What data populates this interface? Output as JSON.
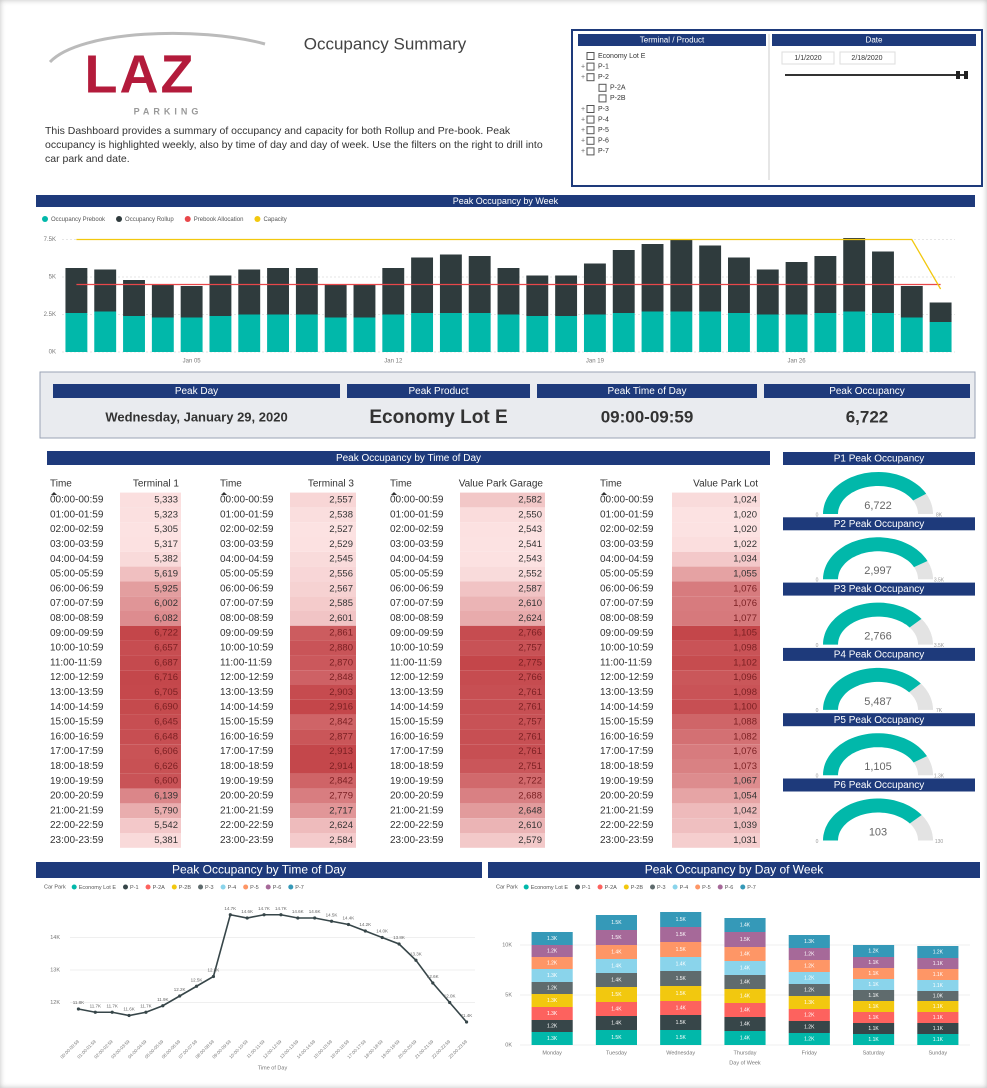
{
  "header": {
    "logo": "LAZ",
    "logo_sub": "PARKING",
    "title": "Occupancy Summary",
    "description": "This Dashboard provides a summary of occupancy and capacity for both Rollup and Pre-book.  Peak occupancy is highlighted weekly, also by time of day and day of week. Use the filters on the right to drill into car park and date."
  },
  "filters": {
    "product_title": "Terminal / Product",
    "products": [
      {
        "name": "Economy Lot E"
      },
      {
        "name": "P-1"
      },
      {
        "name": "P-2",
        "children": [
          "P-2A",
          "P-2B"
        ]
      },
      {
        "name": "P-3"
      },
      {
        "name": "P-4"
      },
      {
        "name": "P-5"
      },
      {
        "name": "P-6"
      },
      {
        "name": "P-7"
      }
    ],
    "date_title": "Date",
    "date_start": "1/1/2020",
    "date_end": "2/18/2020"
  },
  "kpis": [
    {
      "label": "Peak Day",
      "value": "Wednesday, January 29, 2020"
    },
    {
      "label": "Peak Product",
      "value": "Economy Lot E"
    },
    {
      "label": "Peak Time of Day",
      "value": "09:00-09:59"
    },
    {
      "label": "Peak Occupancy",
      "value": "6,722"
    }
  ],
  "table": {
    "title": "Peak Occupancy by Time of Day",
    "time_header": "Time",
    "times": [
      "00:00-00:59",
      "01:00-01:59",
      "02:00-02:59",
      "03:00-03:59",
      "04:00-04:59",
      "05:00-05:59",
      "06:00-06:59",
      "07:00-07:59",
      "08:00-08:59",
      "09:00-09:59",
      "10:00-10:59",
      "11:00-11:59",
      "12:00-12:59",
      "13:00-13:59",
      "14:00-14:59",
      "15:00-15:59",
      "16:00-16:59",
      "17:00-17:59",
      "18:00-18:59",
      "19:00-19:59",
      "20:00-20:59",
      "21:00-21:59",
      "22:00-22:59",
      "23:00-23:59"
    ],
    "columns": [
      {
        "name": "Terminal 1",
        "values": [
          "5,333",
          "5,323",
          "5,305",
          "5,317",
          "5,382",
          "5,619",
          "5,925",
          "6,002",
          "6,082",
          "6,722",
          "6,657",
          "6,687",
          "6,716",
          "6,705",
          "6,690",
          "6,645",
          "6,648",
          "6,606",
          "6,626",
          "6,600",
          "6,139",
          "5,790",
          "5,542",
          "5,381"
        ]
      },
      {
        "name": "Terminal 3",
        "values": [
          "2,557",
          "2,538",
          "2,527",
          "2,529",
          "2,545",
          "2,556",
          "2,567",
          "2,585",
          "2,601",
          "2,861",
          "2,880",
          "2,870",
          "2,848",
          "2,903",
          "2,916",
          "2,842",
          "2,877",
          "2,913",
          "2,914",
          "2,842",
          "2,779",
          "2,717",
          "2,624",
          "2,584"
        ]
      },
      {
        "name": "Value Park Garage",
        "values": [
          "2,582",
          "2,550",
          "2,543",
          "2,541",
          "2,543",
          "2,552",
          "2,587",
          "2,610",
          "2,624",
          "2,766",
          "2,757",
          "2,775",
          "2,766",
          "2,761",
          "2,761",
          "2,757",
          "2,761",
          "2,761",
          "2,751",
          "2,722",
          "2,688",
          "2,648",
          "2,610",
          "2,579"
        ]
      },
      {
        "name": "Value Park Lot",
        "values": [
          "1,024",
          "1,020",
          "1,020",
          "1,022",
          "1,034",
          "1,055",
          "1,076",
          "1,076",
          "1,077",
          "1,105",
          "1,098",
          "1,102",
          "1,096",
          "1,098",
          "1,100",
          "1,088",
          "1,082",
          "1,076",
          "1,073",
          "1,067",
          "1,054",
          "1,042",
          "1,039",
          "1,031"
        ]
      }
    ]
  },
  "chart_data": [
    {
      "type": "bar",
      "title": "Peak Occupancy by Week",
      "categories": [
        null,
        null,
        null,
        null,
        "Jan 05",
        null,
        null,
        null,
        null,
        null,
        null,
        "Jan 12",
        null,
        null,
        null,
        null,
        null,
        null,
        "Jan 19",
        null,
        null,
        null,
        null,
        null,
        null,
        "Jan 26",
        null,
        null,
        null,
        null,
        null
      ],
      "series": [
        {
          "name": "Occupancy Prebook",
          "type": "bar",
          "color": "#01b8aa",
          "values": [
            2600,
            2700,
            2400,
            2300,
            2300,
            2400,
            2500,
            2500,
            2500,
            2300,
            2300,
            2500,
            2600,
            2600,
            2600,
            2500,
            2400,
            2400,
            2500,
            2600,
            2700,
            2700,
            2700,
            2600,
            2500,
            2500,
            2600,
            2700,
            2600,
            2300,
            2000
          ]
        },
        {
          "name": "Occupancy Rollup",
          "type": "bar",
          "color": "#2f3b3d",
          "values": [
            3000,
            2800,
            2400,
            2200,
            2100,
            2700,
            3000,
            3100,
            3100,
            2200,
            2200,
            3100,
            3700,
            3900,
            3800,
            3100,
            2700,
            2700,
            3400,
            4200,
            4500,
            4800,
            4400,
            3700,
            3000,
            3500,
            3800,
            4900,
            4100,
            2100,
            1300
          ]
        },
        {
          "name": "Prebook Allocation",
          "type": "line",
          "color": "#e8474a",
          "values": [
            4500,
            4500,
            4500,
            4500,
            4500,
            4500,
            4500,
            4500,
            4500,
            4500,
            4500,
            4500,
            4500,
            4500,
            4500,
            4500,
            4500,
            4500,
            4500,
            4500,
            4500,
            4500,
            4500,
            4500,
            4500,
            4500,
            4500,
            4500,
            4500,
            4500,
            4500
          ]
        },
        {
          "name": "Capacity",
          "type": "line",
          "color": "#f2c80f",
          "values": [
            7500,
            7500,
            7500,
            7500,
            7500,
            7500,
            7500,
            7500,
            7500,
            7500,
            7500,
            7500,
            7500,
            7500,
            7500,
            7500,
            7500,
            7500,
            7500,
            7500,
            7500,
            7500,
            7500,
            7500,
            7500,
            7500,
            7500,
            7500,
            7500,
            7500,
            4200
          ]
        }
      ],
      "ylim": [
        0,
        8000
      ],
      "yticks": [
        {
          "value": 0,
          "label": "0K"
        },
        {
          "value": 2500,
          "label": "2.5K"
        },
        {
          "value": 5000,
          "label": "5K"
        },
        {
          "value": 7500,
          "label": "7.5K"
        }
      ]
    },
    {
      "type": "line",
      "title": "Peak Occupancy by Time of Day",
      "legend_title": "Car Park",
      "legend": [
        {
          "name": "Economy Lot E",
          "color": "#01b8aa"
        },
        {
          "name": "P-1",
          "color": "#374649"
        },
        {
          "name": "P-2A",
          "color": "#fd625e"
        },
        {
          "name": "P-2B",
          "color": "#f2c80f"
        },
        {
          "name": "P-3",
          "color": "#5f6b6d"
        },
        {
          "name": "P-4",
          "color": "#8ad4eb"
        },
        {
          "name": "P-5",
          "color": "#fe9666"
        },
        {
          "name": "P-6",
          "color": "#a66999"
        },
        {
          "name": "P-7",
          "color": "#3599b8"
        }
      ],
      "categories": [
        "00:00-00:59",
        "01:00-01:59",
        "02:00-02:59",
        "03:00-03:59",
        "04:00-04:59",
        "05:00-05:59",
        "06:00-06:59",
        "07:00-07:59",
        "08:00-08:59",
        "09:00-09:59",
        "10:00-10:59",
        "11:00-11:59",
        "12:00-12:59",
        "13:00-13:59",
        "14:00-14:59",
        "15:00-15:59",
        "16:00-16:59",
        "17:00-17:59",
        "18:00-18:59",
        "19:00-19:59",
        "20:00-20:59",
        "21:00-21:59",
        "22:00-22:59",
        "23:00-23:59"
      ],
      "color": "#374649",
      "values": [
        11800,
        11700,
        11700,
        11600,
        11700,
        11900,
        12200,
        12500,
        12800,
        14700,
        14600,
        14700,
        14700,
        14600,
        14600,
        14500,
        14400,
        14200,
        14000,
        13800,
        13300,
        12600,
        12000,
        11400
      ],
      "value_labels": [
        "11.8K",
        "11.7K",
        "11.7K",
        "11.6K",
        "11.7K",
        "11.9K",
        "12.2K",
        "12.5K",
        "12.8K",
        "14.7K",
        "14.6K",
        "14.7K",
        "14.7K",
        "14.6K",
        "14.6K",
        "14.5K",
        "14.4K",
        "14.2K",
        "14.0K",
        "13.8K",
        "13.3K",
        "12.6K",
        "12.0K",
        "11.4K"
      ],
      "xlabel": "Time of Day",
      "ylim": [
        11000,
        15000
      ],
      "yticks": [
        {
          "value": 12000,
          "label": "12K"
        },
        {
          "value": 13000,
          "label": "13K"
        },
        {
          "value": 14000,
          "label": "14K"
        }
      ]
    },
    {
      "type": "stacked_bar",
      "title": "Peak Occupancy by Day of Week",
      "legend_title": "Car Park",
      "categories": [
        "Monday",
        "Tuesday",
        "Wednesday",
        "Thursday",
        "Friday",
        "Saturday",
        "Sunday"
      ],
      "series": [
        {
          "name": "Economy Lot E",
          "color": "#01b8aa",
          "values": [
            1300,
            1500,
            1500,
            1400,
            1200,
            1100,
            1100
          ],
          "value_labels": [
            "1.3K",
            "1.5K",
            "1.5K",
            "1.4K",
            "1.2K",
            "1.1K",
            "1.1K"
          ]
        },
        {
          "name": "P-1",
          "color": "#374649",
          "values": [
            1200,
            1400,
            1500,
            1400,
            1200,
            1100,
            1100
          ],
          "value_labels": [
            "1.2K",
            "1.4K",
            "1.5K",
            "1.4K",
            "1.2K",
            "1.1K",
            "1.1K"
          ]
        },
        {
          "name": "P-2A",
          "color": "#fd625e",
          "values": [
            1300,
            1400,
            1400,
            1400,
            1200,
            1100,
            1100
          ],
          "value_labels": [
            "1.3K",
            "1.4K",
            "1.4K",
            "1.4K",
            "1.2K",
            "1.1K",
            "1.1K"
          ]
        },
        {
          "name": "P-2B",
          "color": "#f2c80f",
          "values": [
            1300,
            1500,
            1500,
            1400,
            1300,
            1100,
            1100
          ],
          "value_labels": [
            "1.3K",
            "1.5K",
            "1.5K",
            "1.4K",
            "1.3K",
            "1.1K",
            "1.1K"
          ]
        },
        {
          "name": "P-3",
          "color": "#5f6b6d",
          "values": [
            1200,
            1400,
            1500,
            1400,
            1200,
            1100,
            1000
          ],
          "value_labels": [
            "1.2K",
            "1.4K",
            "1.5K",
            "1.4K",
            "1.2K",
            "1.1K",
            "1.0K"
          ]
        },
        {
          "name": "P-4",
          "color": "#8ad4eb",
          "values": [
            1300,
            1400,
            1400,
            1400,
            1200,
            1100,
            1100
          ],
          "value_labels": [
            "1.3K",
            "1.4K",
            "1.4K",
            "1.4K",
            "1.2K",
            "1.1K",
            "1.1K"
          ]
        },
        {
          "name": "P-5",
          "color": "#fe9666",
          "values": [
            1200,
            1400,
            1500,
            1400,
            1200,
            1100,
            1100
          ],
          "value_labels": [
            "1.2K",
            "1.4K",
            "1.5K",
            "1.4K",
            "1.2K",
            "1.1K",
            "1.1K"
          ]
        },
        {
          "name": "P-6",
          "color": "#a66999",
          "values": [
            1200,
            1500,
            1500,
            1500,
            1200,
            1100,
            1100
          ],
          "value_labels": [
            "1.2K",
            "1.5K",
            "1.5K",
            "1.5K",
            "1.2K",
            "1.1K",
            "1.1K"
          ]
        },
        {
          "name": "P-7",
          "color": "#3599b8",
          "values": [
            1300,
            1500,
            1500,
            1400,
            1300,
            1200,
            1200
          ],
          "value_labels": [
            "1.3K",
            "1.5K",
            "1.5K",
            "1.4K",
            "1.3K",
            "1.2K",
            "1.2K"
          ]
        }
      ],
      "xlabel": "Day of Week",
      "ylim": [
        0,
        14000
      ],
      "yticks": [
        {
          "value": 0,
          "label": "0K"
        },
        {
          "value": 5000,
          "label": "5K"
        },
        {
          "value": 10000,
          "label": "10K"
        }
      ]
    },
    {
      "type": "gauge",
      "title": "P1 Peak Occupancy",
      "value": 6722,
      "value_label": "6,722",
      "color": "#01b8aa",
      "ylim": [
        0,
        8000
      ],
      "yticks": [
        0,
        {
          "value": 8000,
          "label": "8K"
        }
      ]
    },
    {
      "type": "gauge",
      "title": "P2 Peak Occupancy",
      "value": 2997,
      "value_label": "2,997",
      "color": "#01b8aa",
      "ylim": [
        0,
        3500
      ],
      "yticks": [
        0,
        {
          "value": 3500,
          "label": "3.5K"
        }
      ]
    },
    {
      "type": "gauge",
      "title": "P3 Peak Occupancy",
      "value": 2766,
      "value_label": "2,766",
      "color": "#01b8aa",
      "ylim": [
        0,
        3500
      ],
      "yticks": [
        0,
        {
          "value": 3500,
          "label": "3.5K"
        }
      ]
    },
    {
      "type": "gauge",
      "title": "P4 Peak Occupancy",
      "value": 5487,
      "value_label": "5,487",
      "color": "#01b8aa",
      "ylim": [
        0,
        7000
      ],
      "yticks": [
        0,
        {
          "value": 7000,
          "label": "7K"
        }
      ]
    },
    {
      "type": "gauge",
      "title": "P5 Peak Occupancy",
      "value": 1105,
      "value_label": "1,105",
      "color": "#01b8aa",
      "ylim": [
        0,
        1300
      ],
      "yticks": [
        0,
        {
          "value": 1300,
          "label": "1.3K"
        }
      ]
    },
    {
      "type": "gauge",
      "title": "P6 Peak Occupancy",
      "value": 103,
      "color": "#01b8aa",
      "ylim": [
        0,
        130
      ],
      "yticks": [
        0,
        130
      ]
    }
  ]
}
